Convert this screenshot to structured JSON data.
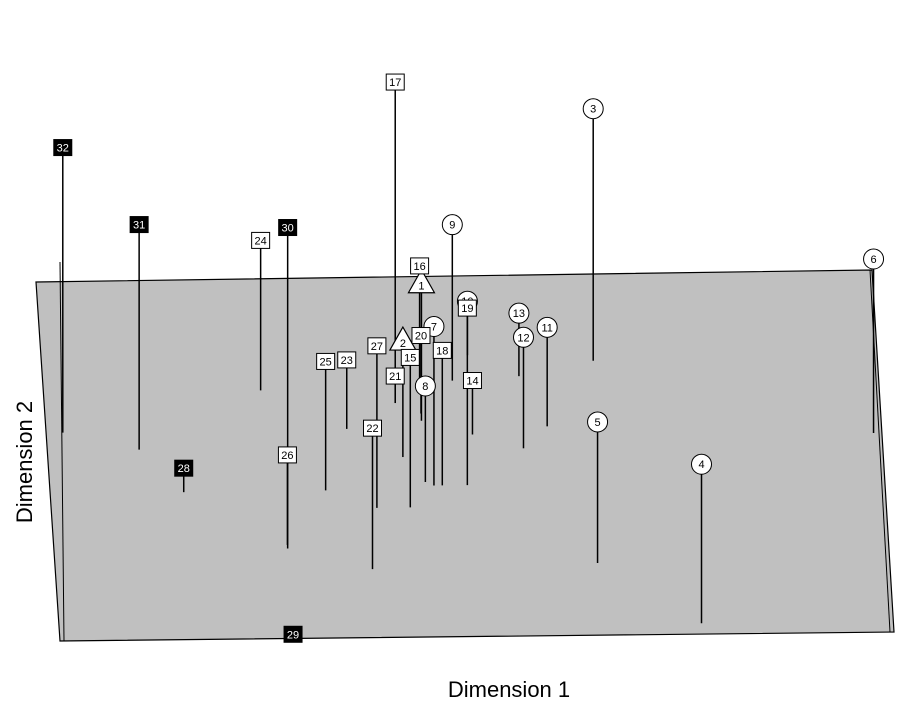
{
  "chart_data": {
    "type": "scatter",
    "style": "3d-spike-plot",
    "xlabel": "Dimension 1",
    "ylabel": "Dimension 2",
    "colors": {
      "plane_fill": "#c0c0c0",
      "plane_edge": "#000000",
      "marker_white": "#ffffff",
      "marker_black": "#000000"
    },
    "shape_legend": {
      "circle": "points 3–13",
      "triangle": "points 1–2",
      "square_white": "points 14–27",
      "square_black": "points 28–32"
    },
    "points": [
      {
        "label": "1",
        "shape": "triangle",
        "fill": "white",
        "x": 0.45,
        "y": 0.6,
        "height": 0.46
      },
      {
        "label": "2",
        "shape": "triangle",
        "fill": "white",
        "x": 0.425,
        "y": 0.5,
        "height": 0.39
      },
      {
        "label": "3",
        "shape": "circle",
        "fill": "white",
        "x": 0.66,
        "y": 0.76,
        "height": 0.84
      },
      {
        "label": "4",
        "shape": "circle",
        "fill": "white",
        "x": 0.77,
        "y": 0.03,
        "height": 0.53
      },
      {
        "label": "5",
        "shape": "circle",
        "fill": "white",
        "x": 0.65,
        "y": 0.2,
        "height": 0.47
      },
      {
        "label": "6",
        "shape": "circle",
        "fill": "white",
        "x": 0.99,
        "y": 0.55,
        "height": 0.58
      },
      {
        "label": "7",
        "shape": "circle",
        "fill": "white",
        "x": 0.46,
        "y": 0.42,
        "height": 0.53
      },
      {
        "label": "8",
        "shape": "circle",
        "fill": "white",
        "x": 0.45,
        "y": 0.43,
        "height": 0.32
      },
      {
        "label": "9",
        "shape": "circle",
        "fill": "white",
        "x": 0.49,
        "y": 0.71,
        "height": 0.52
      },
      {
        "label": "10",
        "shape": "circle",
        "fill": "white",
        "x": 0.51,
        "y": 0.78,
        "height": 0.18
      },
      {
        "label": "11",
        "shape": "circle",
        "fill": "white",
        "x": 0.6,
        "y": 0.58,
        "height": 0.33
      },
      {
        "label": "12",
        "shape": "circle",
        "fill": "white",
        "x": 0.57,
        "y": 0.52,
        "height": 0.37
      },
      {
        "label": "13",
        "shape": "circle",
        "fill": "white",
        "x": 0.57,
        "y": 0.72,
        "height": 0.21
      },
      {
        "label": "14",
        "shape": "square",
        "fill": "white",
        "x": 0.51,
        "y": 0.56,
        "height": 0.18
      },
      {
        "label": "15",
        "shape": "square",
        "fill": "white",
        "x": 0.43,
        "y": 0.36,
        "height": 0.5
      },
      {
        "label": "16",
        "shape": "square",
        "fill": "white",
        "x": 0.45,
        "y": 0.68,
        "height": 0.42
      },
      {
        "label": "17",
        "shape": "square",
        "fill": "white",
        "x": 0.42,
        "y": 0.65,
        "height": 1.07
      },
      {
        "label": "18",
        "shape": "square",
        "fill": "white",
        "x": 0.47,
        "y": 0.42,
        "height": 0.45
      },
      {
        "label": "19",
        "shape": "square",
        "fill": "white",
        "x": 0.5,
        "y": 0.42,
        "height": 0.59
      },
      {
        "label": "20",
        "shape": "square",
        "fill": "white",
        "x": 0.45,
        "y": 0.62,
        "height": 0.26
      },
      {
        "label": "21",
        "shape": "square",
        "fill": "white",
        "x": 0.42,
        "y": 0.65,
        "height": 0.09
      },
      {
        "label": "22",
        "shape": "square",
        "fill": "white",
        "x": 0.38,
        "y": 0.19,
        "height": 0.47
      },
      {
        "label": "23",
        "shape": "square",
        "fill": "white",
        "x": 0.36,
        "y": 0.58,
        "height": 0.23
      },
      {
        "label": "24",
        "shape": "square",
        "fill": "white",
        "x": 0.26,
        "y": 0.69,
        "height": 0.5
      },
      {
        "label": "25",
        "shape": "square",
        "fill": "white",
        "x": 0.33,
        "y": 0.41,
        "height": 0.43
      },
      {
        "label": "26",
        "shape": "square",
        "fill": "white",
        "x": 0.28,
        "y": 0.26,
        "height": 0.3
      },
      {
        "label": "27",
        "shape": "square",
        "fill": "white",
        "x": 0.39,
        "y": 0.36,
        "height": 0.54
      },
      {
        "label": "28",
        "shape": "square",
        "fill": "black",
        "x": 0.16,
        "y": 0.41,
        "height": 0.08
      },
      {
        "label": "29",
        "shape": "square",
        "fill": "black",
        "x": 0.28,
        "y": 0.02,
        "height": -0.01
      },
      {
        "label": "30",
        "shape": "square",
        "fill": "black",
        "x": 0.28,
        "y": 0.25,
        "height": 1.07
      },
      {
        "label": "31",
        "shape": "square",
        "fill": "black",
        "x": 0.11,
        "y": 0.53,
        "height": 0.75
      },
      {
        "label": "32",
        "shape": "square",
        "fill": "black",
        "x": 0.02,
        "y": 0.58,
        "height": 0.95
      }
    ]
  }
}
